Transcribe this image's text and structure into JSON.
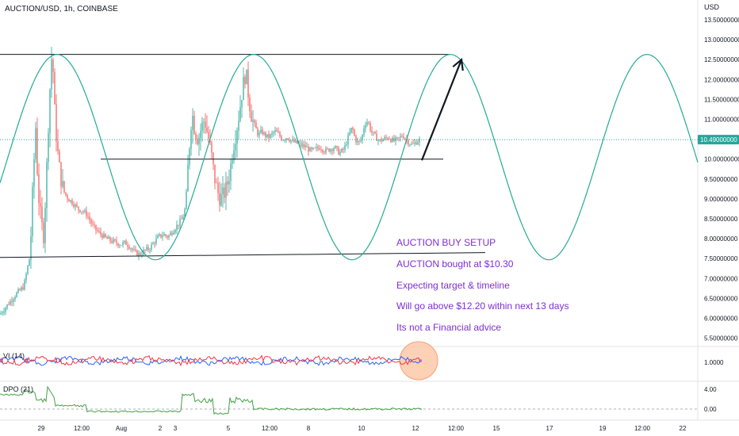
{
  "chart_data": {
    "type": "candlestick",
    "title": "AUCTION/USD, 1h, COINBASE",
    "currency": "USD",
    "y_ticks": [
      "13.50000000",
      "13.00000000",
      "12.50000000",
      "12.00000000",
      "11.50000000",
      "11.00000000",
      "10.50000000",
      "10.00000000",
      "9.50000000",
      "9.00000000",
      "8.50000000",
      "8.00000000",
      "7.50000000",
      "7.00000000",
      "6.50000000",
      "6.00000000",
      "5.50000000"
    ],
    "y_range": [
      5.3,
      13.6
    ],
    "last_price": 10.49,
    "last_price_label": "10.49000000",
    "x_ticks": [
      "29",
      "12:00",
      "Aug",
      "2",
      "3",
      "5",
      "12:00",
      "8",
      "10",
      "12",
      "12:00",
      "15",
      "17",
      "19",
      "12:00",
      "22"
    ],
    "price_path": [
      [
        0,
        6.1
      ],
      [
        10,
        6.35
      ],
      [
        20,
        6.6
      ],
      [
        30,
        6.8
      ],
      [
        38,
        7.6
      ],
      [
        42,
        9.6
      ],
      [
        45,
        10.8
      ],
      [
        48,
        9.2
      ],
      [
        52,
        8.4
      ],
      [
        55,
        8.1
      ],
      [
        58,
        9.3
      ],
      [
        62,
        11.4
      ],
      [
        66,
        12.9
      ],
      [
        68,
        11.5
      ],
      [
        72,
        10.3
      ],
      [
        76,
        9.6
      ],
      [
        80,
        9.2
      ],
      [
        86,
        9.0
      ],
      [
        92,
        8.9
      ],
      [
        98,
        8.75
      ],
      [
        104,
        8.7
      ],
      [
        110,
        8.6
      ],
      [
        116,
        8.35
      ],
      [
        122,
        8.2
      ],
      [
        128,
        8.1
      ],
      [
        134,
        8.0
      ],
      [
        140,
        7.95
      ],
      [
        146,
        7.9
      ],
      [
        152,
        7.85
      ],
      [
        158,
        7.9
      ],
      [
        164,
        7.8
      ],
      [
        170,
        7.65
      ],
      [
        176,
        7.6
      ],
      [
        182,
        7.7
      ],
      [
        188,
        7.75
      ],
      [
        194,
        7.9
      ],
      [
        200,
        8.05
      ],
      [
        206,
        8.1
      ],
      [
        212,
        8.05
      ],
      [
        218,
        8.2
      ],
      [
        224,
        8.35
      ],
      [
        230,
        8.5
      ],
      [
        234,
        8.8
      ],
      [
        238,
        10.1
      ],
      [
        242,
        11.2
      ],
      [
        246,
        10.7
      ],
      [
        250,
        10.5
      ],
      [
        254,
        10.8
      ],
      [
        258,
        11.0
      ],
      [
        262,
        10.6
      ],
      [
        266,
        10.2
      ],
      [
        270,
        9.6
      ],
      [
        274,
        9.2
      ],
      [
        278,
        9.0
      ],
      [
        282,
        9.1
      ],
      [
        286,
        9.3
      ],
      [
        290,
        9.7
      ],
      [
        294,
        10.3
      ],
      [
        298,
        10.7
      ],
      [
        302,
        11.2
      ],
      [
        306,
        11.8
      ],
      [
        310,
        12.2
      ],
      [
        314,
        11.5
      ],
      [
        318,
        11.0
      ],
      [
        322,
        10.8
      ],
      [
        326,
        10.6
      ],
      [
        330,
        10.7
      ],
      [
        334,
        10.6
      ],
      [
        338,
        10.55
      ],
      [
        342,
        10.6
      ],
      [
        346,
        10.7
      ],
      [
        350,
        10.65
      ],
      [
        356,
        10.5
      ],
      [
        362,
        10.55
      ],
      [
        368,
        10.45
      ],
      [
        374,
        10.4
      ],
      [
        380,
        10.35
      ],
      [
        386,
        10.3
      ],
      [
        392,
        10.2
      ],
      [
        398,
        10.25
      ],
      [
        404,
        10.3
      ],
      [
        410,
        10.2
      ],
      [
        416,
        10.25
      ],
      [
        422,
        10.3
      ],
      [
        428,
        10.15
      ],
      [
        434,
        10.25
      ],
      [
        440,
        10.6
      ],
      [
        444,
        10.8
      ],
      [
        448,
        10.5
      ],
      [
        452,
        10.4
      ],
      [
        456,
        10.5
      ],
      [
        460,
        10.9
      ],
      [
        464,
        10.95
      ],
      [
        468,
        10.7
      ],
      [
        472,
        10.6
      ],
      [
        478,
        10.45
      ],
      [
        484,
        10.5
      ],
      [
        490,
        10.55
      ],
      [
        496,
        10.45
      ],
      [
        502,
        10.5
      ],
      [
        508,
        10.6
      ],
      [
        514,
        10.45
      ],
      [
        520,
        10.35
      ],
      [
        526,
        10.45
      ],
      [
        530,
        10.49
      ]
    ],
    "lines": [
      {
        "name": "upper-resistance",
        "from": [
          0,
          12.63
        ],
        "to": [
          567,
          12.63
        ]
      },
      {
        "name": "mid-support",
        "from": [
          127,
          10.0
        ],
        "to": [
          559,
          10.0
        ]
      },
      {
        "name": "lower-support",
        "from": [
          0,
          7.53
        ],
        "to": [
          612,
          7.65
        ]
      }
    ],
    "sine": {
      "center_price": 10.05,
      "amplitude_price": 2.58,
      "period_px": 248,
      "peak_x": 72
    },
    "arrow": {
      "from": [
        532,
        9.97
      ],
      "to": [
        582,
        12.5
      ]
    },
    "annotations": [
      "AUCTION BUY SETUP",
      "AUCTION bought at $10.30",
      "Expecting target & timeline",
      "Will go above $12.20 within next 13 days",
      "Its not a Financial advice"
    ],
    "vi": {
      "label": "VI (14)",
      "ticks": [
        "1.0000"
      ],
      "vi_plus": "#2962ff",
      "vi_minus": "#f23645"
    },
    "dpo": {
      "label": "DPO (21)",
      "ticks": [
        "4.00",
        "0.00"
      ]
    }
  },
  "colors": {
    "up": "#26a69a",
    "down": "#ef5350",
    "sine": "#22ab94",
    "annotation": "#7e2fd0",
    "last_price_bg": "#26a69a",
    "dpo": "#43a047",
    "highlight": "#fbc29e"
  }
}
